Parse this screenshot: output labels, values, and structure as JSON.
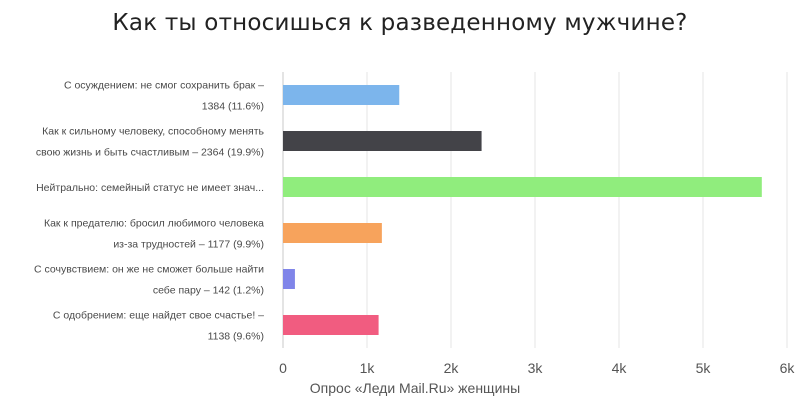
{
  "chart_data": {
    "type": "bar",
    "orientation": "horizontal",
    "title": "Как ты относишься к разведенному мужчине?",
    "xlabel": "Опрос «Леди Mail.Ru» женщины",
    "ylabel": "",
    "xlim": [
      0,
      6000
    ],
    "x_ticks": [
      0,
      1000,
      2000,
      3000,
      4000,
      5000,
      6000
    ],
    "x_tick_labels": [
      "0",
      "1k",
      "2k",
      "3k",
      "4k",
      "5k",
      "6k"
    ],
    "grid": "vertical",
    "legend": "none",
    "categories": [
      [
        "С осуждением: не смог сохранить брак –",
        "1384 (11.6%)"
      ],
      [
        "Как к сильному человеку, способному менять",
        "свою жизнь и быть счастливым – 2364 (19.9%)"
      ],
      [
        "Нейтрально: семейный статус не имеет знач..."
      ],
      [
        "Как к предателю: бросил любимого человека",
        "из-за трудностей – 1177 (9.9%)"
      ],
      [
        "С сочувствием: он же не сможет больше найти",
        "себе пару – 142 (1.2%)"
      ],
      [
        "С одобрением: еще найдет свое счастье! –",
        "1138 (9.6%)"
      ]
    ],
    "values": [
      1384,
      2364,
      5700,
      1177,
      142,
      1138
    ],
    "colors": [
      "#7cb5ec",
      "#434348",
      "#90ed7d",
      "#f7a35c",
      "#8085e9",
      "#f15c80"
    ]
  }
}
